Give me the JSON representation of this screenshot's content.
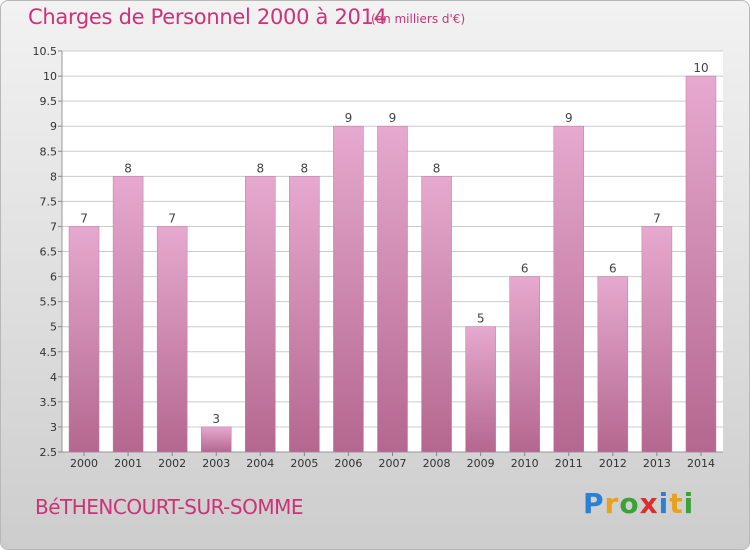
{
  "header": {
    "title": "Charges de Personnel 2000 à 2014",
    "subtitle": "(en milliers d'€)"
  },
  "footer": {
    "commune": "BéTHENCOURT-SUR-SOMME",
    "logo_text": "Proxiti",
    "logo_letters": [
      {
        "char": "P",
        "color": "#2b7fd4"
      },
      {
        "char": "r",
        "color": "#e8a21a"
      },
      {
        "char": "o",
        "color": "#3aa335"
      },
      {
        "char": "x",
        "color": "#d9302e"
      },
      {
        "char": "i",
        "color": "#2b7fd4"
      },
      {
        "char": "t",
        "color": "#e8a21a"
      },
      {
        "char": "i",
        "color": "#3aa335"
      }
    ]
  },
  "colors": {
    "title": "#cc3377",
    "bar_top": "#e6a9cf",
    "bar_bottom": "#b4678f",
    "grid": "#cccccc"
  },
  "chart_data": {
    "type": "bar",
    "title": "Charges de Personnel 2000 à 2014",
    "subtitle": "(en milliers d'€)",
    "categories": [
      "2000",
      "2001",
      "2002",
      "2003",
      "2004",
      "2005",
      "2006",
      "2007",
      "2008",
      "2009",
      "2010",
      "2011",
      "2012",
      "2013",
      "2014"
    ],
    "values": [
      7,
      8,
      7,
      3,
      8,
      8,
      9,
      9,
      8,
      5,
      6,
      9,
      6,
      7,
      10
    ],
    "data_labels": [
      "7",
      "8",
      "7",
      "3",
      "8",
      "8",
      "9",
      "9",
      "8",
      "5",
      "6",
      "9",
      "6",
      "7",
      "10"
    ],
    "ylim": [
      2.5,
      10.5
    ],
    "yticks": [
      "2.5",
      "3",
      "3.5",
      "4",
      "4.5",
      "5",
      "5.5",
      "6",
      "6.5",
      "7",
      "7.5",
      "8",
      "8.5",
      "9",
      "9.5",
      "10",
      "10.5"
    ],
    "xlabel": "",
    "ylabel": "",
    "grid": true,
    "legend": "none"
  }
}
